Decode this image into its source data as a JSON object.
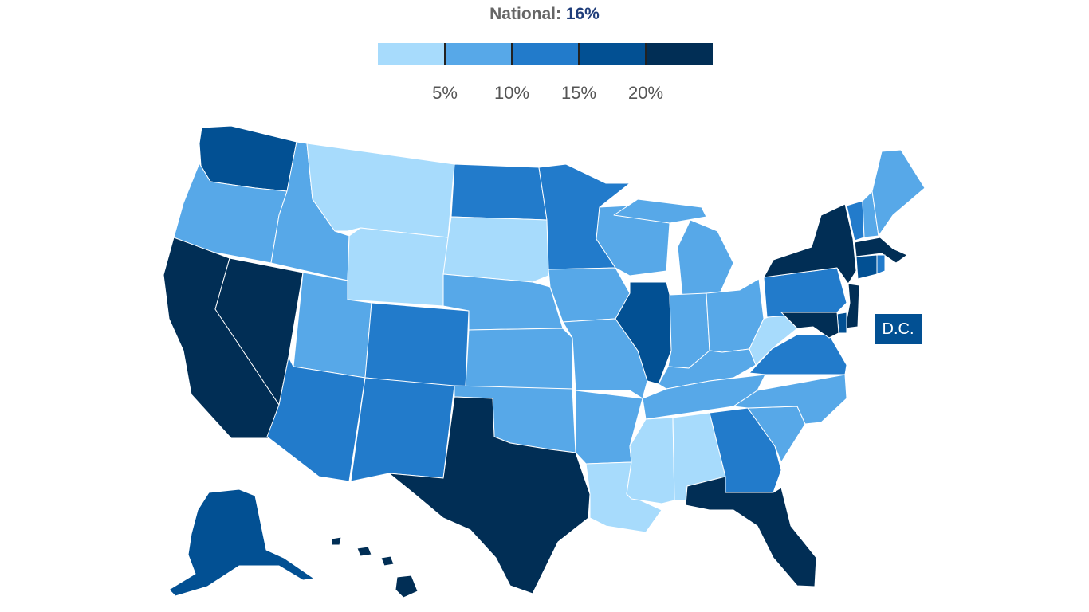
{
  "header": {
    "label": "National:",
    "value": "16%"
  },
  "legend": {
    "colors": [
      "#a7dbfc",
      "#57a8e8",
      "#227bcb",
      "#025093",
      "#012e55"
    ],
    "breaks": [
      "5%",
      "10%",
      "15%",
      "20%"
    ]
  },
  "dc_label": "D.C.",
  "dc_color": "#025093"
}
